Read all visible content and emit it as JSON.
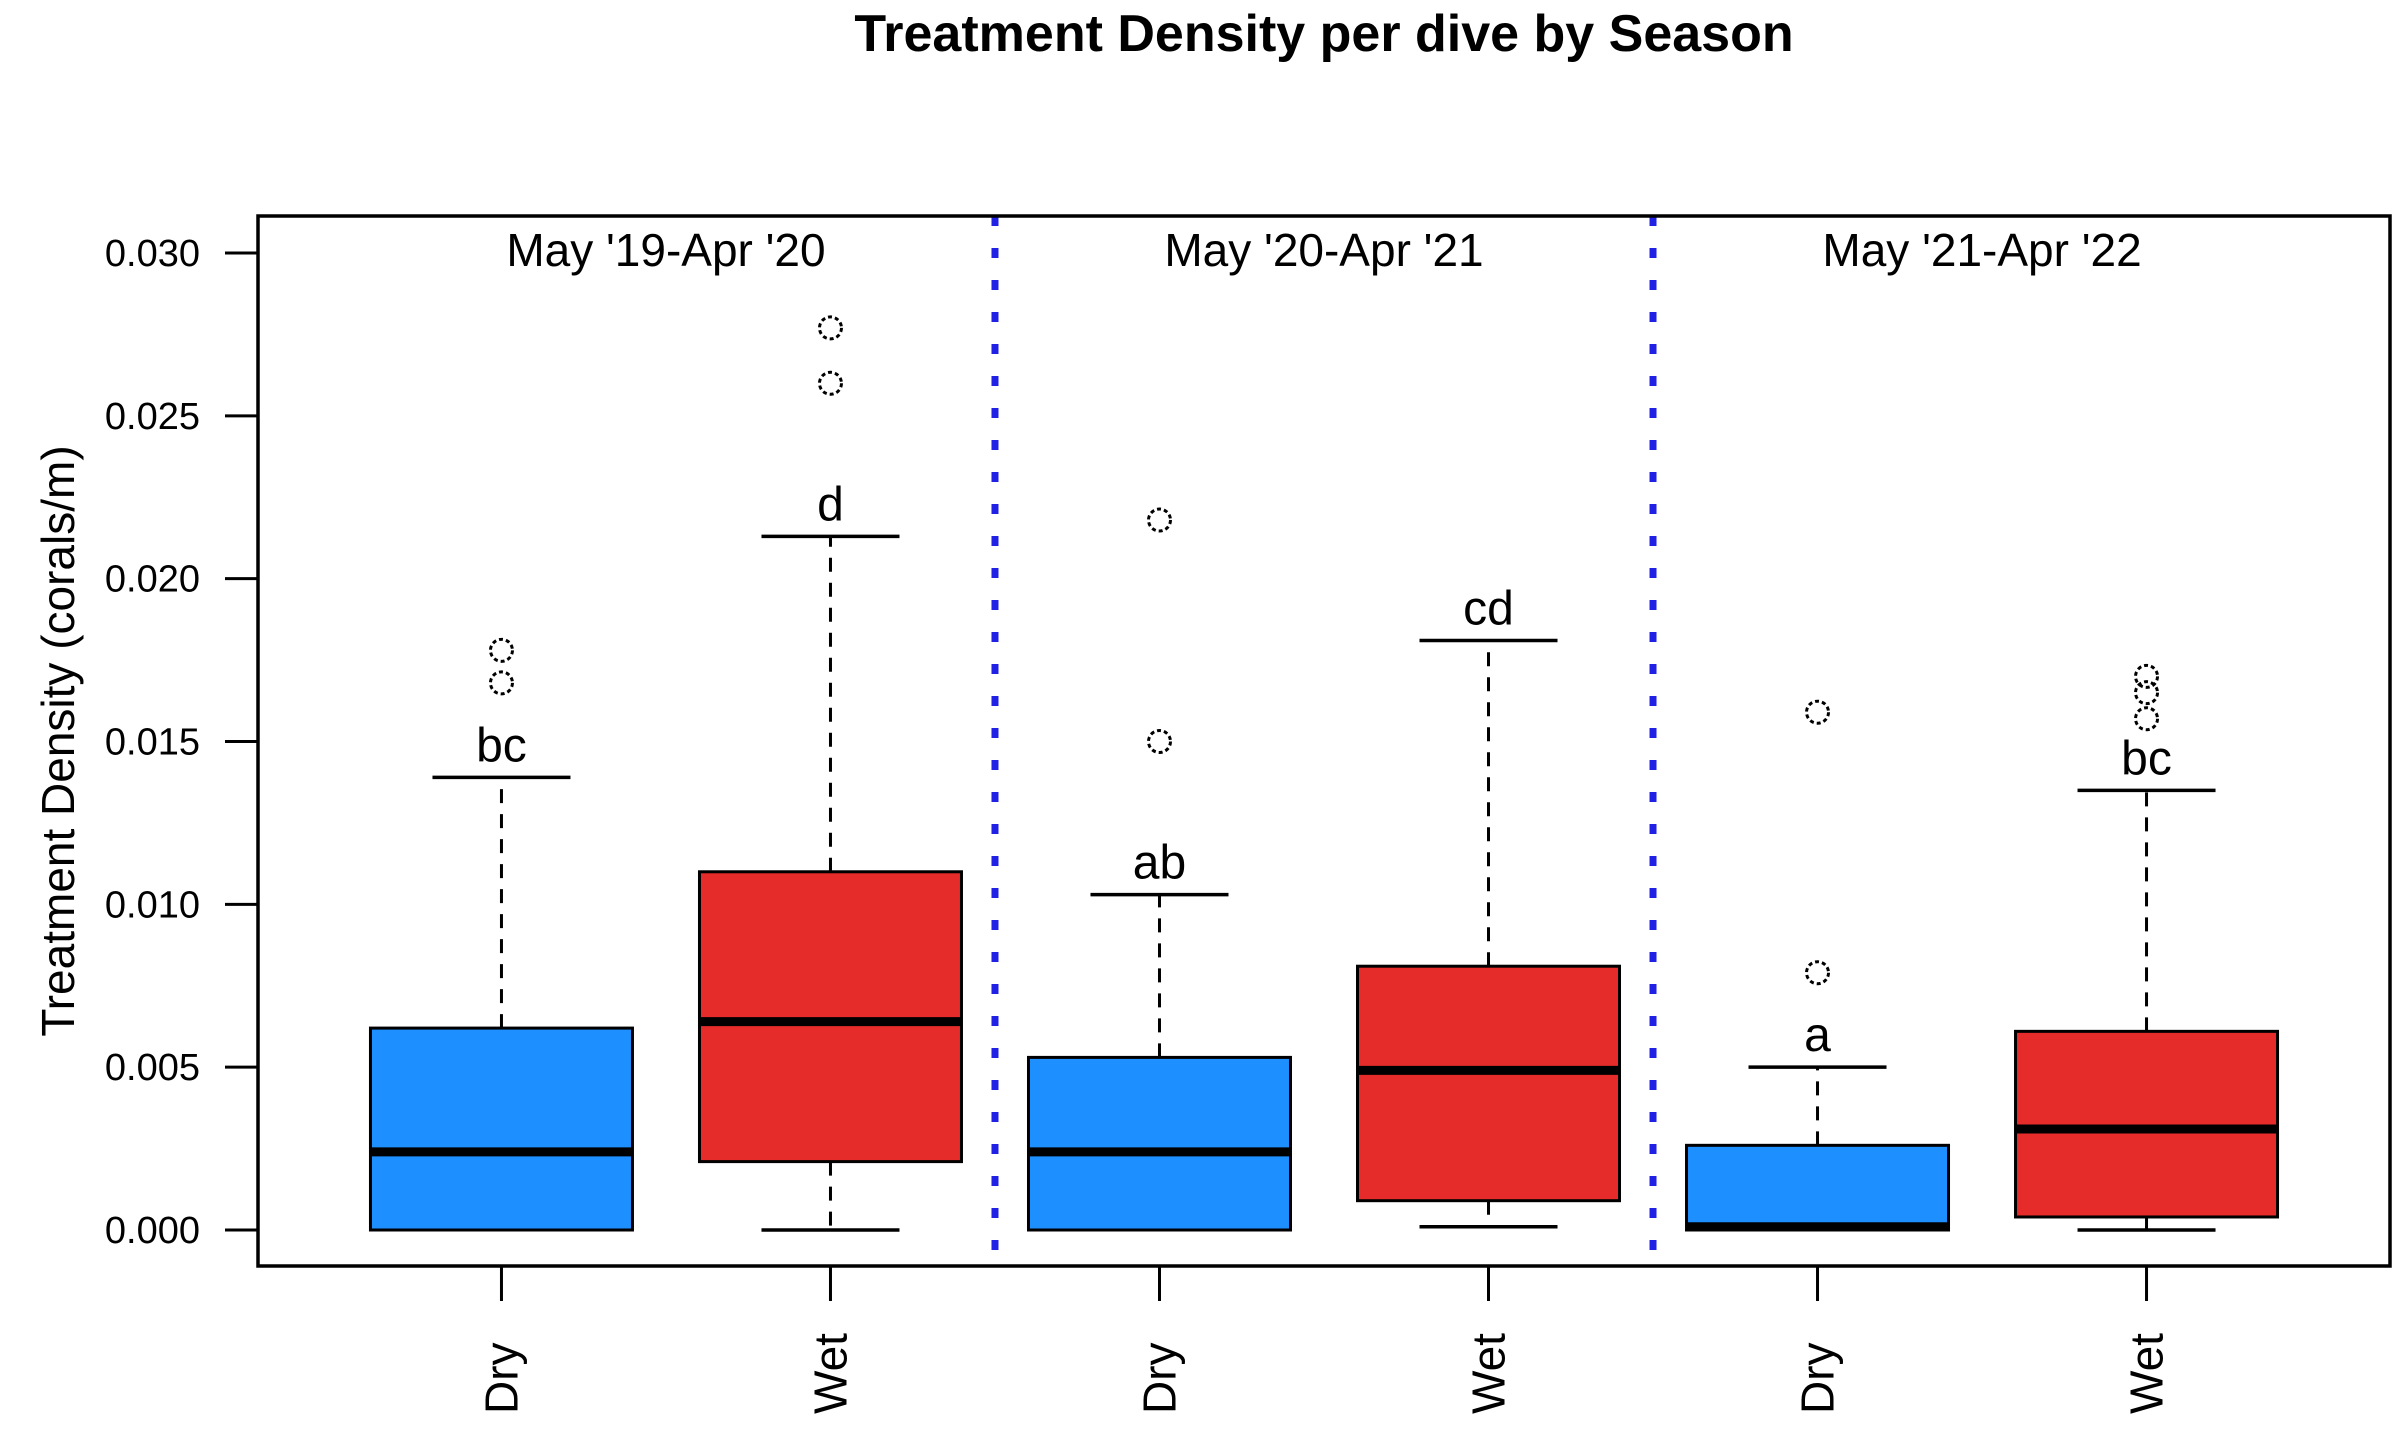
{
  "title": "Treatment Density per dive by Season",
  "y_axis": {
    "label": "Treatment Density (corals/m)",
    "tick_labels": [
      "0.000",
      "0.005",
      "0.010",
      "0.015",
      "0.020",
      "0.025",
      "0.030"
    ]
  },
  "chart_data": {
    "type": "boxplot",
    "title": "Treatment Density per dive by Season",
    "ylabel": "Treatment Density (corals/m)",
    "xlabel": "",
    "ylim": [
      0,
      0.03
    ],
    "yticks": [
      0,
      0.005,
      0.01,
      0.015,
      0.02,
      0.025,
      0.03
    ],
    "ytick_labels": [
      "0.000",
      "0.005",
      "0.010",
      "0.015",
      "0.020",
      "0.025",
      "0.030"
    ],
    "grid": false,
    "legend": "none",
    "panels": [
      {
        "label": "May '19-Apr '20",
        "center_pos": 1.5
      },
      {
        "label": "May '20-Apr '21",
        "center_pos": 3.5
      },
      {
        "label": "May '21-Apr '22",
        "center_pos": 5.5
      }
    ],
    "separators_pos": [
      2.5,
      4.5
    ],
    "boxes": [
      {
        "pos": 1,
        "panel": "May '19-Apr '20",
        "season": "Dry",
        "letter": "bc",
        "color_key": "dry",
        "whisker_low": null,
        "q1": 0.0,
        "median": 0.0024,
        "q3": 0.0062,
        "whisker_high": 0.0139,
        "outliers": [
          0.0178,
          0.0168
        ]
      },
      {
        "pos": 2,
        "panel": "May '19-Apr '20",
        "season": "Wet",
        "letter": "d",
        "color_key": "wet",
        "whisker_low": 0.0,
        "q1": 0.0021,
        "median": 0.0064,
        "q3": 0.011,
        "whisker_high": 0.0213,
        "outliers": [
          0.0277,
          0.026
        ]
      },
      {
        "pos": 3,
        "panel": "May '20-Apr '21",
        "season": "Dry",
        "letter": "ab",
        "color_key": "dry",
        "whisker_low": null,
        "q1": 0.0,
        "median": 0.0024,
        "q3": 0.0053,
        "whisker_high": 0.0103,
        "outliers": [
          0.0218,
          0.015
        ]
      },
      {
        "pos": 4,
        "panel": "May '20-Apr '21",
        "season": "Wet",
        "letter": "cd",
        "color_key": "wet",
        "whisker_low": 0.0001,
        "q1": 0.0009,
        "median": 0.0049,
        "q3": 0.0081,
        "whisker_high": 0.0181,
        "outliers": []
      },
      {
        "pos": 5,
        "panel": "May '21-Apr '22",
        "season": "Dry",
        "letter": "a",
        "color_key": "dry",
        "whisker_low": null,
        "q1": 0.0,
        "median": 0.0001,
        "q3": 0.0026,
        "whisker_high": 0.005,
        "outliers": [
          0.0159,
          0.0079
        ]
      },
      {
        "pos": 6,
        "panel": "May '21-Apr '22",
        "season": "Wet",
        "letter": "bc",
        "color_key": "wet",
        "whisker_low": 0.0,
        "q1": 0.0004,
        "median": 0.0031,
        "q3": 0.0061,
        "whisker_high": 0.0135,
        "outliers": [
          0.017,
          0.0165,
          0.0157
        ]
      }
    ],
    "colors": {
      "dry": "#1E8FFF",
      "wet": "#E62B2B",
      "separator": "#2121E6",
      "frame": "#000000",
      "text": "#000000"
    }
  }
}
